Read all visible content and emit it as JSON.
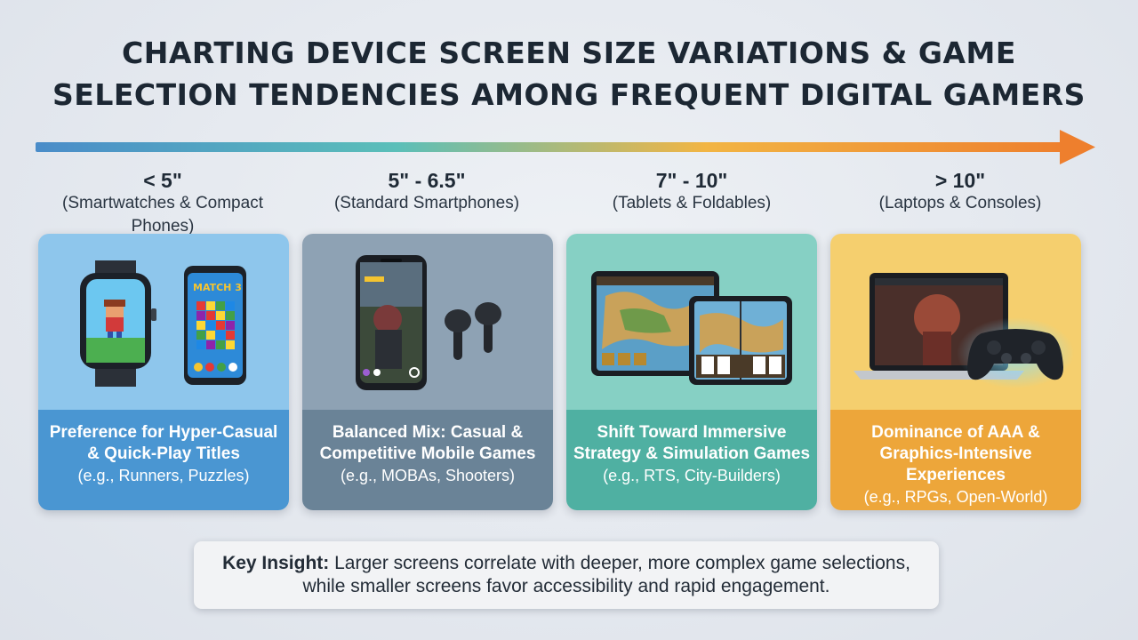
{
  "title": {
    "line1": "CHARTING DEVICE SCREEN SIZE VARIATIONS & GAME",
    "line2": "SELECTION TENDENCIES AMONG FREQUENT DIGITAL GAMERS"
  },
  "colors": {
    "arrow_start": "#4a8cc9",
    "arrow_mid": "#5bbfb9",
    "arrow_mid2": "#f2b544",
    "arrow_end": "#ee7f2d"
  },
  "segments": [
    {
      "range": "< 5\"",
      "devices": "(Smartwatches & Compact Phones)",
      "headline_line1": "Preference for Hyper-Casual",
      "headline_line2": "& Quick-Play Titles",
      "examples": "(e.g., Runners, Puzzles)",
      "art_text": "MATCH 3",
      "icons": [
        "smartwatch-icon",
        "compact-phone-icon"
      ],
      "color_art": "#8ec6ec",
      "color_caption": "#4a96d2"
    },
    {
      "range": "5\" - 6.5\"",
      "devices": "(Standard Smartphones)",
      "headline_line1": "Balanced Mix: Casual &",
      "headline_line2": "Competitive Mobile Games",
      "examples": "(e.g., MOBAs, Shooters)",
      "icons": [
        "smartphone-icon",
        "earbuds-icon"
      ],
      "color_art": "#8ea2b4",
      "color_caption": "#6a8397"
    },
    {
      "range": "7\" - 10\"",
      "devices": "(Tablets & Foldables)",
      "headline_line1": "Shift Toward Immersive",
      "headline_line2": "Strategy & Simulation Games",
      "examples": "(e.g., RTS, City-Builders)",
      "icons": [
        "tablet-icon",
        "foldable-icon"
      ],
      "color_art": "#86d0c4",
      "color_caption": "#4fb0a2"
    },
    {
      "range": "> 10\"",
      "devices": "(Laptops & Consoles)",
      "headline_line1": "Dominance of AAA &",
      "headline_line2": "Graphics-Intensive Experiences",
      "examples": "(e.g., RPGs, Open-World)",
      "icons": [
        "laptop-icon",
        "gamepad-icon"
      ],
      "color_art": "#f5cf6e",
      "color_caption": "#eda63a"
    }
  ],
  "insight": {
    "label": "Key Insight:",
    "line1": "Larger screens correlate with deeper, more complex game selections,",
    "line2": "while smaller screens favor accessibility and rapid engagement."
  }
}
